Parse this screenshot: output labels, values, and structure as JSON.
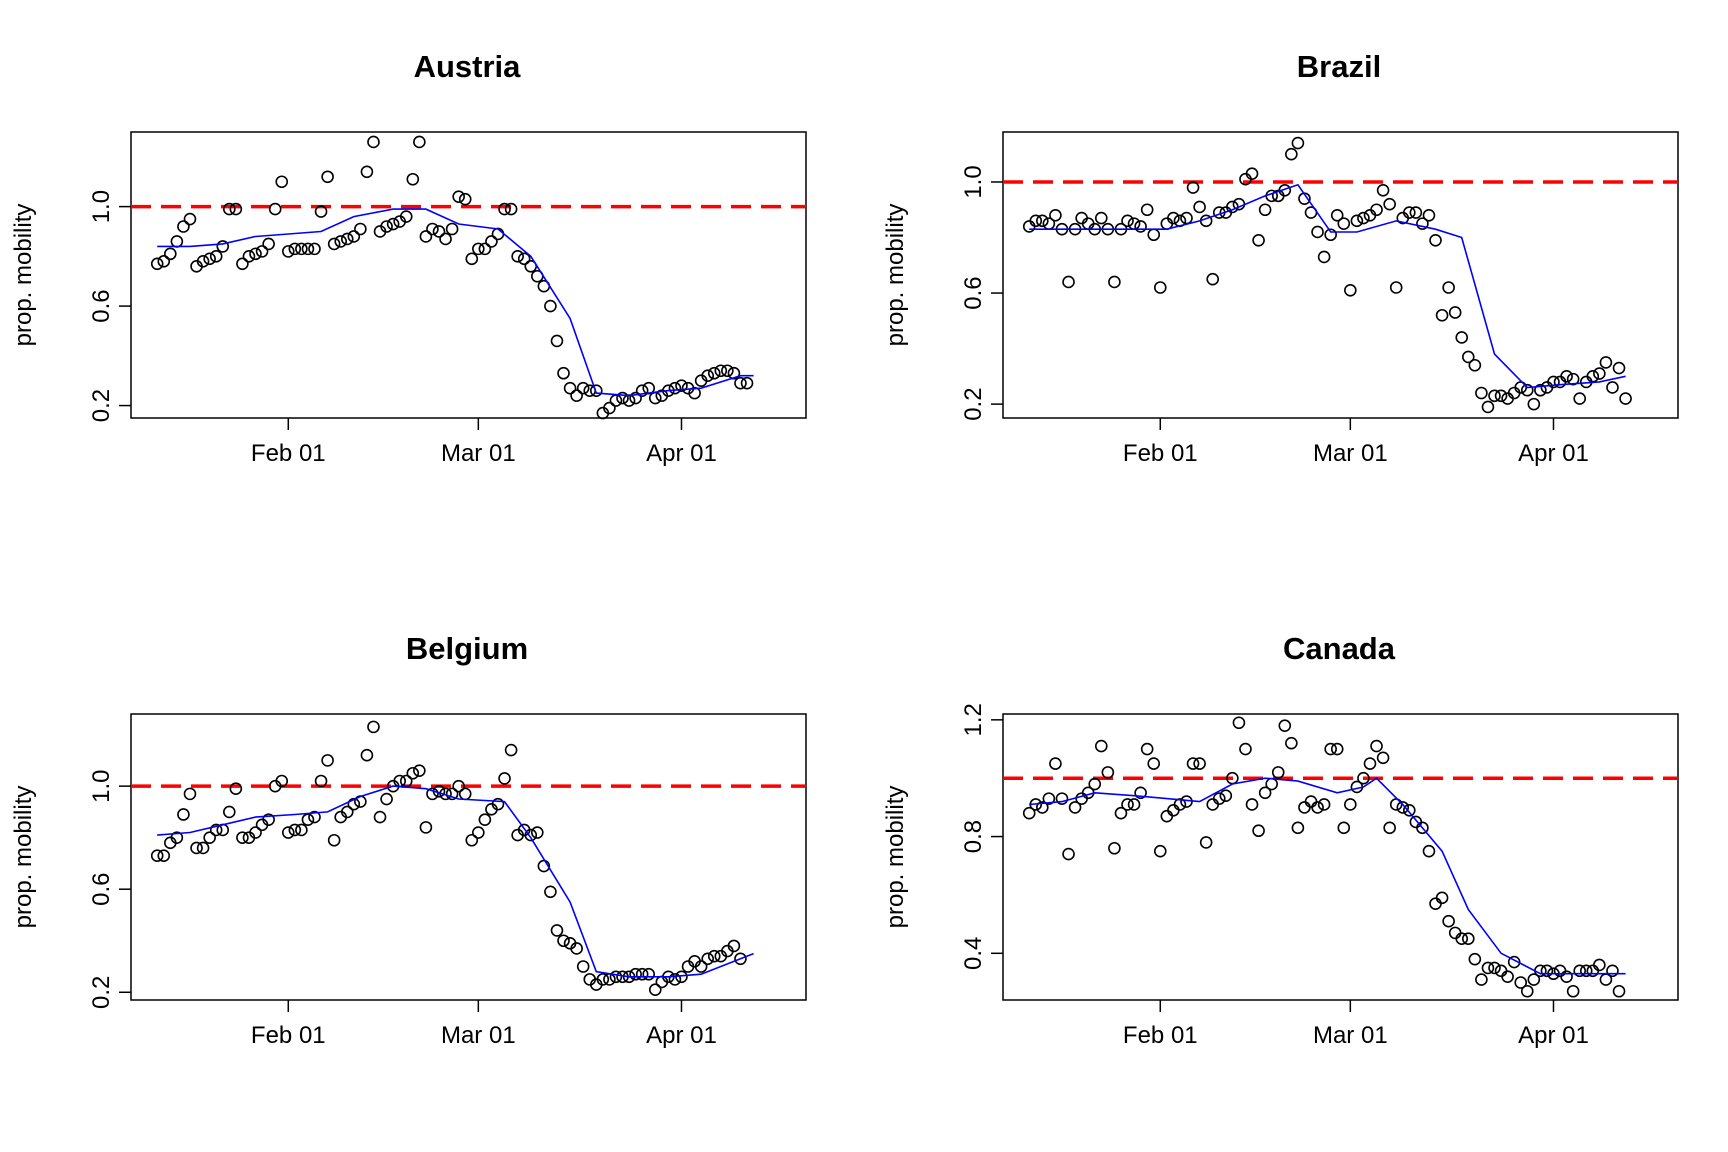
{
  "colors": {
    "reference_line": "#ff0000",
    "smooth_line": "#0000ff",
    "points": "#000000"
  },
  "chart_data": [
    {
      "type": "scatter",
      "title": "Austria",
      "ylabel": "prop. mobility",
      "xlabel": "",
      "x_ticks": [
        {
          "date": "2020-02-01",
          "label": "Feb 01"
        },
        {
          "date": "2020-03-01",
          "label": "Mar 01"
        },
        {
          "date": "2020-04-01",
          "label": "Apr 01"
        }
      ],
      "xlim": [
        "2020-01-08",
        "2020-04-20"
      ],
      "y_ticks": [
        0.2,
        0.6,
        1.0
      ],
      "y_tick_labels": [
        "0.2",
        "0.6",
        "1.0"
      ],
      "ylim": [
        0.15,
        1.3
      ],
      "reference_line": {
        "y": 1.0,
        "style": "dashed",
        "color": "#ff0000"
      },
      "x_start": "2020-01-12",
      "x_step_days": 1,
      "points": [
        0.77,
        0.78,
        0.81,
        0.86,
        0.92,
        0.95,
        0.76,
        0.78,
        0.79,
        0.8,
        0.84,
        0.99,
        0.99,
        0.77,
        0.8,
        0.81,
        0.82,
        0.85,
        0.99,
        1.1,
        0.82,
        0.83,
        0.83,
        0.83,
        0.83,
        0.98,
        1.12,
        0.85,
        0.86,
        0.87,
        0.88,
        0.91,
        1.14,
        1.26,
        0.9,
        0.92,
        0.93,
        0.94,
        0.96,
        1.11,
        1.26,
        0.88,
        0.91,
        0.9,
        0.87,
        0.91,
        1.04,
        1.03,
        0.79,
        0.83,
        0.83,
        0.86,
        0.89,
        0.99,
        0.99,
        0.8,
        0.79,
        0.76,
        0.72,
        0.68,
        0.6,
        0.46,
        0.33,
        0.27,
        0.24,
        0.27,
        0.26,
        0.26,
        0.17,
        0.19,
        0.22,
        0.23,
        0.22,
        0.23,
        0.26,
        0.27,
        0.23,
        0.24,
        0.26,
        0.27,
        0.28,
        0.27,
        0.25,
        0.3,
        0.32,
        0.33,
        0.34,
        0.34,
        0.33,
        0.29,
        0.29
      ],
      "smooth": [
        [
          "2020-01-12",
          0.84
        ],
        [
          "2020-01-17",
          0.84
        ],
        [
          "2020-01-22",
          0.85
        ],
        [
          "2020-01-27",
          0.88
        ],
        [
          "2020-02-01",
          0.89
        ],
        [
          "2020-02-06",
          0.9
        ],
        [
          "2020-02-11",
          0.96
        ],
        [
          "2020-02-17",
          0.99
        ],
        [
          "2020-02-22",
          0.99
        ],
        [
          "2020-02-27",
          0.93
        ],
        [
          "2020-03-04",
          0.91
        ],
        [
          "2020-03-09",
          0.8
        ],
        [
          "2020-03-15",
          0.55
        ],
        [
          "2020-03-19",
          0.25
        ],
        [
          "2020-03-24",
          0.24
        ],
        [
          "2020-03-30",
          0.26
        ],
        [
          "2020-04-04",
          0.27
        ],
        [
          "2020-04-10",
          0.32
        ],
        [
          "2020-04-12",
          0.32
        ]
      ]
    },
    {
      "type": "scatter",
      "title": "Brazil",
      "ylabel": "prop. mobility",
      "xlabel": "",
      "x_ticks": [
        {
          "date": "2020-02-01",
          "label": "Feb 01"
        },
        {
          "date": "2020-03-01",
          "label": "Mar 01"
        },
        {
          "date": "2020-04-01",
          "label": "Apr 01"
        }
      ],
      "xlim": [
        "2020-01-08",
        "2020-04-20"
      ],
      "y_ticks": [
        0.2,
        0.6,
        1.0
      ],
      "y_tick_labels": [
        "0.2",
        "0.6",
        "1.0"
      ],
      "ylim": [
        0.15,
        1.18
      ],
      "reference_line": {
        "y": 1.0,
        "style": "dashed",
        "color": "#ff0000"
      },
      "x_start": "2020-01-12",
      "x_step_days": 1,
      "points": [
        0.84,
        0.86,
        0.86,
        0.85,
        0.88,
        0.83,
        0.64,
        0.83,
        0.87,
        0.85,
        0.83,
        0.87,
        0.83,
        0.64,
        0.83,
        0.86,
        0.85,
        0.84,
        0.9,
        0.81,
        0.62,
        0.85,
        0.87,
        0.86,
        0.87,
        0.98,
        0.91,
        0.86,
        0.65,
        0.89,
        0.89,
        0.91,
        0.92,
        1.01,
        1.03,
        0.79,
        0.9,
        0.95,
        0.95,
        0.97,
        1.1,
        1.14,
        0.94,
        0.89,
        0.82,
        0.73,
        0.81,
        0.88,
        0.85,
        0.61,
        0.86,
        0.87,
        0.88,
        0.9,
        0.97,
        0.92,
        0.62,
        0.87,
        0.89,
        0.89,
        0.85,
        0.88,
        0.79,
        0.52,
        0.62,
        0.53,
        0.44,
        0.37,
        0.34,
        0.24,
        0.19,
        0.23,
        0.23,
        0.22,
        0.24,
        0.26,
        0.25,
        0.2,
        0.25,
        0.26,
        0.28,
        0.28,
        0.3,
        0.29,
        0.22,
        0.28,
        0.3,
        0.31,
        0.35,
        0.26,
        0.33,
        0.22
      ],
      "smooth": [
        [
          "2020-01-12",
          0.83
        ],
        [
          "2020-01-17",
          0.83
        ],
        [
          "2020-01-22",
          0.83
        ],
        [
          "2020-01-28",
          0.83
        ],
        [
          "2020-02-02",
          0.83
        ],
        [
          "2020-02-07",
          0.86
        ],
        [
          "2020-02-12",
          0.9
        ],
        [
          "2020-02-17",
          0.95
        ],
        [
          "2020-02-22",
          0.99
        ],
        [
          "2020-02-27",
          0.82
        ],
        [
          "2020-03-02",
          0.82
        ],
        [
          "2020-03-08",
          0.86
        ],
        [
          "2020-03-14",
          0.83
        ],
        [
          "2020-03-18",
          0.8
        ],
        [
          "2020-03-23",
          0.38
        ],
        [
          "2020-03-28",
          0.26
        ],
        [
          "2020-04-02",
          0.27
        ],
        [
          "2020-04-08",
          0.28
        ],
        [
          "2020-04-12",
          0.3
        ]
      ]
    },
    {
      "type": "scatter",
      "title": "Belgium",
      "ylabel": "prop. mobility",
      "xlabel": "",
      "x_ticks": [
        {
          "date": "2020-02-01",
          "label": "Feb 01"
        },
        {
          "date": "2020-03-01",
          "label": "Mar 01"
        },
        {
          "date": "2020-04-01",
          "label": "Apr 01"
        }
      ],
      "xlim": [
        "2020-01-08",
        "2020-04-20"
      ],
      "y_ticks": [
        0.2,
        0.6,
        1.0
      ],
      "y_tick_labels": [
        "0.2",
        "0.6",
        "1.0"
      ],
      "ylim": [
        0.17,
        1.28
      ],
      "reference_line": {
        "y": 1.0,
        "style": "dashed",
        "color": "#ff0000"
      },
      "x_start": "2020-01-12",
      "x_step_days": 1,
      "points": [
        0.73,
        0.73,
        0.78,
        0.8,
        0.89,
        0.97,
        0.76,
        0.76,
        0.8,
        0.83,
        0.83,
        0.9,
        0.99,
        0.8,
        0.8,
        0.82,
        0.85,
        0.87,
        1.0,
        1.02,
        0.82,
        0.83,
        0.83,
        0.87,
        0.88,
        1.02,
        1.1,
        0.79,
        0.88,
        0.9,
        0.93,
        0.94,
        1.12,
        1.23,
        0.88,
        0.95,
        1.0,
        1.02,
        1.02,
        1.05,
        1.06,
        0.84,
        0.97,
        0.98,
        0.97,
        0.97,
        1.0,
        0.97,
        0.79,
        0.82,
        0.87,
        0.91,
        0.93,
        1.03,
        1.14,
        0.81,
        0.83,
        0.81,
        0.82,
        0.69,
        0.59,
        0.44,
        0.4,
        0.39,
        0.37,
        0.3,
        0.25,
        0.23,
        0.25,
        0.25,
        0.26,
        0.26,
        0.26,
        0.27,
        0.27,
        0.27,
        0.21,
        0.24,
        0.26,
        0.25,
        0.26,
        0.3,
        0.32,
        0.3,
        0.33,
        0.34,
        0.34,
        0.36,
        0.38,
        0.33
      ],
      "smooth": [
        [
          "2020-01-12",
          0.81
        ],
        [
          "2020-01-17",
          0.82
        ],
        [
          "2020-01-22",
          0.85
        ],
        [
          "2020-01-27",
          0.88
        ],
        [
          "2020-02-02",
          0.89
        ],
        [
          "2020-02-07",
          0.9
        ],
        [
          "2020-02-12",
          0.96
        ],
        [
          "2020-02-17",
          1.0
        ],
        [
          "2020-02-22",
          0.99
        ],
        [
          "2020-02-27",
          0.95
        ],
        [
          "2020-03-05",
          0.94
        ],
        [
          "2020-03-09",
          0.8
        ],
        [
          "2020-03-15",
          0.55
        ],
        [
          "2020-03-19",
          0.28
        ],
        [
          "2020-03-24",
          0.26
        ],
        [
          "2020-03-30",
          0.26
        ],
        [
          "2020-04-04",
          0.27
        ],
        [
          "2020-04-10",
          0.33
        ],
        [
          "2020-04-12",
          0.35
        ]
      ]
    },
    {
      "type": "scatter",
      "title": "Canada",
      "ylabel": "prop. mobility",
      "xlabel": "",
      "x_ticks": [
        {
          "date": "2020-02-01",
          "label": "Feb 01"
        },
        {
          "date": "2020-03-01",
          "label": "Mar 01"
        },
        {
          "date": "2020-04-01",
          "label": "Apr 01"
        }
      ],
      "xlim": [
        "2020-01-08",
        "2020-04-20"
      ],
      "y_ticks": [
        0.4,
        0.8,
        1.2
      ],
      "y_tick_labels": [
        "0.4",
        "0.8",
        "1.2"
      ],
      "ylim": [
        0.24,
        1.22
      ],
      "reference_line": {
        "y": 1.0,
        "style": "dashed",
        "color": "#ff0000"
      },
      "x_start": "2020-01-12",
      "x_step_days": 1,
      "points": [
        0.88,
        0.91,
        0.9,
        0.93,
        1.05,
        0.93,
        0.74,
        0.9,
        0.93,
        0.95,
        0.98,
        1.11,
        1.02,
        0.76,
        0.88,
        0.91,
        0.91,
        0.95,
        1.1,
        1.05,
        0.75,
        0.87,
        0.89,
        0.91,
        0.92,
        1.05,
        1.05,
        0.78,
        0.91,
        0.93,
        0.94,
        1.0,
        1.19,
        1.1,
        0.91,
        0.82,
        0.95,
        0.98,
        1.02,
        1.18,
        1.12,
        0.83,
        0.9,
        0.92,
        0.9,
        0.91,
        1.1,
        1.1,
        0.83,
        0.91,
        0.97,
        1.0,
        1.05,
        1.11,
        1.07,
        0.83,
        0.91,
        0.9,
        0.89,
        0.85,
        0.83,
        0.75,
        0.57,
        0.59,
        0.51,
        0.47,
        0.45,
        0.45,
        0.38,
        0.31,
        0.35,
        0.35,
        0.34,
        0.32,
        0.37,
        0.3,
        0.27,
        0.31,
        0.34,
        0.34,
        0.33,
        0.34,
        0.32,
        0.27,
        0.34,
        0.34,
        0.34,
        0.36,
        0.31,
        0.34,
        0.27
      ],
      "smooth": [
        [
          "2020-01-12",
          0.91
        ],
        [
          "2020-01-17",
          0.92
        ],
        [
          "2020-01-22",
          0.95
        ],
        [
          "2020-01-28",
          0.94
        ],
        [
          "2020-02-02",
          0.93
        ],
        [
          "2020-02-07",
          0.92
        ],
        [
          "2020-02-12",
          0.98
        ],
        [
          "2020-02-17",
          1.0
        ],
        [
          "2020-02-22",
          0.99
        ],
        [
          "2020-02-28",
          0.95
        ],
        [
          "2020-03-03",
          0.97
        ],
        [
          "2020-03-05",
          1.0
        ],
        [
          "2020-03-09",
          0.91
        ],
        [
          "2020-03-15",
          0.75
        ],
        [
          "2020-03-19",
          0.55
        ],
        [
          "2020-03-24",
          0.4
        ],
        [
          "2020-03-30",
          0.33
        ],
        [
          "2020-04-04",
          0.33
        ],
        [
          "2020-04-10",
          0.33
        ],
        [
          "2020-04-12",
          0.33
        ]
      ]
    }
  ]
}
